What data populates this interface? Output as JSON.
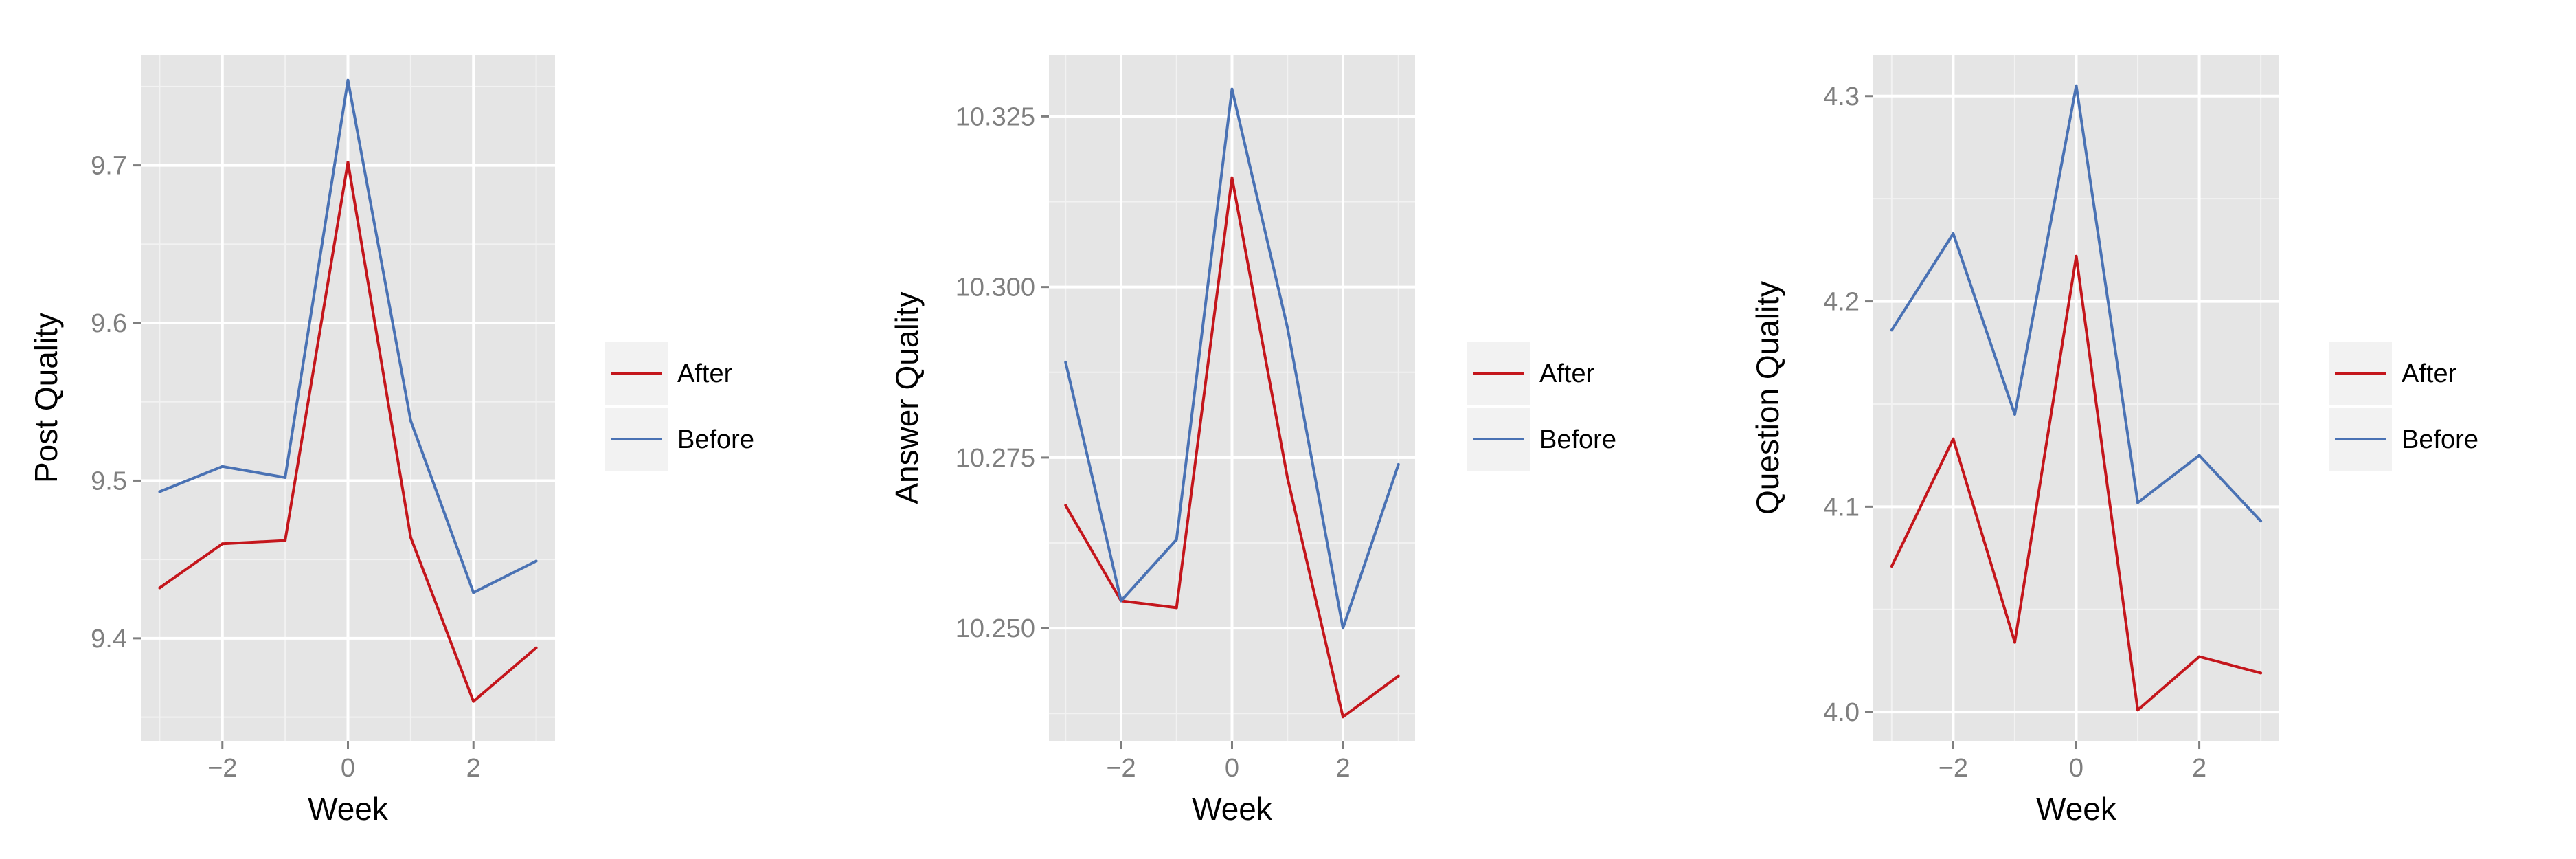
{
  "colors": {
    "after": "#c4161c",
    "before": "#4a72b4",
    "panel_bg": "#e5e5e5",
    "grid": "#ffffff",
    "legend_key_bg": "#f2f2f2"
  },
  "chart_data": [
    {
      "type": "line",
      "xlabel": "Week",
      "ylabel": "Post Quality",
      "x": [
        -3,
        -2,
        -1,
        0,
        1,
        2,
        3
      ],
      "xlim": [
        -3.3,
        3.3
      ],
      "ylim": [
        9.335,
        9.77
      ],
      "xticks": [
        -2,
        0,
        2
      ],
      "xtick_labels": [
        "−2",
        "0",
        "2"
      ],
      "yticks": [
        9.4,
        9.5,
        9.6,
        9.7
      ],
      "ytick_labels": [
        "9.4",
        "9.5",
        "9.6",
        "9.7"
      ],
      "grid": true,
      "legend_position": "right",
      "series": [
        {
          "name": "After",
          "color_key": "after",
          "values": [
            9.432,
            9.46,
            9.462,
            9.702,
            9.464,
            9.36,
            9.394
          ]
        },
        {
          "name": "Before",
          "color_key": "before",
          "values": [
            9.493,
            9.509,
            9.502,
            9.754,
            9.538,
            9.429,
            9.449
          ]
        }
      ]
    },
    {
      "type": "line",
      "xlabel": "Week",
      "ylabel": "Answer Quality",
      "x": [
        -3,
        -2,
        -1,
        0,
        1,
        2,
        3
      ],
      "xlim": [
        -3.3,
        3.3
      ],
      "ylim": [
        10.2335,
        10.334
      ],
      "xticks": [
        -2,
        0,
        2
      ],
      "xtick_labels": [
        "−2",
        "0",
        "2"
      ],
      "yticks": [
        10.25,
        10.275,
        10.3,
        10.325
      ],
      "ytick_labels": [
        "10.250",
        "10.275",
        "10.300",
        "10.325"
      ],
      "grid": true,
      "legend_position": "right",
      "series": [
        {
          "name": "After",
          "color_key": "after",
          "values": [
            10.268,
            10.254,
            10.253,
            10.316,
            10.272,
            10.237,
            10.243
          ]
        },
        {
          "name": "Before",
          "color_key": "before",
          "values": [
            10.289,
            10.254,
            10.263,
            10.329,
            10.294,
            10.25,
            10.274
          ]
        }
      ]
    },
    {
      "type": "line",
      "xlabel": "Week",
      "ylabel": "Question Quality",
      "x": [
        -3,
        -2,
        -1,
        0,
        1,
        2,
        3
      ],
      "xlim": [
        -3.3,
        3.3
      ],
      "ylim": [
        3.986,
        4.32
      ],
      "xticks": [
        -2,
        0,
        2
      ],
      "xtick_labels": [
        "−2",
        "0",
        "2"
      ],
      "yticks": [
        4.0,
        4.1,
        4.2,
        4.3
      ],
      "ytick_labels": [
        "4.0",
        "4.1",
        "4.2",
        "4.3"
      ],
      "grid": true,
      "legend_position": "right",
      "series": [
        {
          "name": "After",
          "color_key": "after",
          "values": [
            4.071,
            4.133,
            4.034,
            4.222,
            4.001,
            4.027,
            4.019
          ]
        },
        {
          "name": "Before",
          "color_key": "before",
          "values": [
            4.186,
            4.233,
            4.145,
            4.305,
            4.102,
            4.125,
            4.093
          ]
        }
      ]
    }
  ]
}
